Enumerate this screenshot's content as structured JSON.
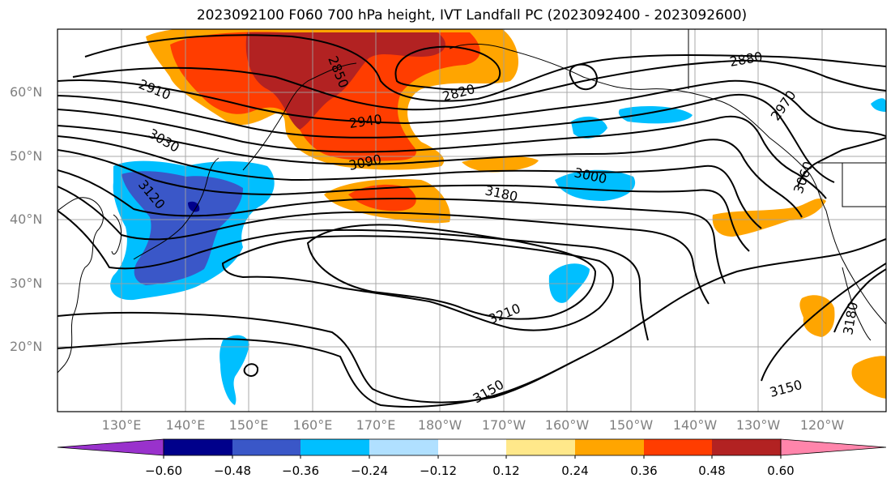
{
  "title": "2023092100 F060 700 hPa height, IVT Landfall PC (2023092400 - 2023092600)",
  "latitude_labels": [
    "60°N",
    "50°N",
    "40°N",
    "30°N",
    "20°N"
  ],
  "longitude_labels": [
    "130°E",
    "140°E",
    "150°E",
    "160°E",
    "170°E",
    "180°W",
    "170°W",
    "160°W",
    "150°W",
    "140°W",
    "130°W",
    "120°W"
  ],
  "colorbar": {
    "ticks": [
      "−0.60",
      "−0.48",
      "−0.36",
      "−0.24",
      "−0.12",
      "0.12",
      "0.24",
      "0.36",
      "0.48",
      "0.60"
    ],
    "colors": [
      "#9932cc",
      "#00008b",
      "#3a57c8",
      "#00bfff",
      "#b0e0ff",
      "#ffffff",
      "#ffe88a",
      "#ffa500",
      "#ff3d00",
      "#b22222",
      "#ff85ab"
    ]
  },
  "contour_labels": [
    "2850",
    "2880",
    "2910",
    "2820",
    "2940",
    "2970",
    "3030",
    "3090",
    "3000",
    "3120",
    "3060",
    "3180",
    "3210",
    "3180",
    "3150",
    "3150"
  ],
  "colors": {
    "contour": "#000000",
    "grid": "#a0a0a0",
    "coast": "#000000"
  }
}
